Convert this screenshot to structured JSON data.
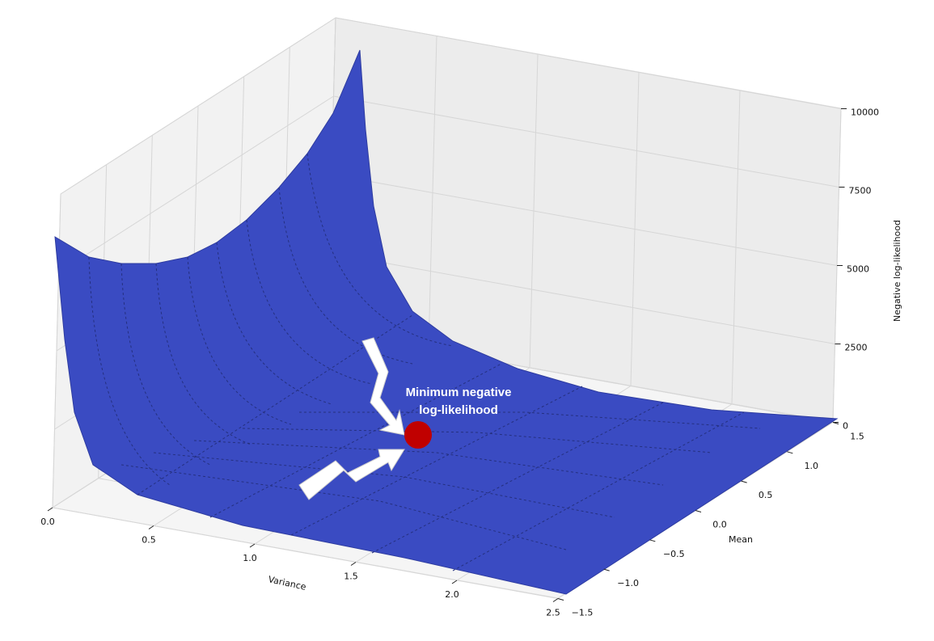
{
  "chart_data": {
    "type": "surface",
    "xlabel": "Variance",
    "ylabel": "Mean",
    "zlabel": "Negative log-likelihood",
    "xlim": [
      0,
      2.5
    ],
    "xticks": [
      {
        "value": 0,
        "label": "0.0"
      },
      0.5,
      {
        "value": 1,
        "label": "1.0"
      },
      1.5,
      {
        "value": 2,
        "label": "2.0"
      },
      2.5
    ],
    "ylim": [
      -1.5,
      1.5
    ],
    "yticks": [
      {
        "value": -1.5,
        "label": "−1.5"
      },
      {
        "value": -1,
        "label": "−1.0"
      },
      {
        "value": -0.5,
        "label": "−0.5"
      },
      {
        "value": 0,
        "label": "0.0"
      },
      0.5,
      {
        "value": 1,
        "label": "1.0"
      },
      1.5
    ],
    "zlim": [
      0,
      10000
    ],
    "zticks": [
      0,
      2500,
      5000,
      7500,
      10000
    ],
    "color": "#3a4bc2",
    "annotation": [
      "Minimum negative",
      "log-likelihood"
    ],
    "marker_color": "#c00000",
    "grid": true
  }
}
